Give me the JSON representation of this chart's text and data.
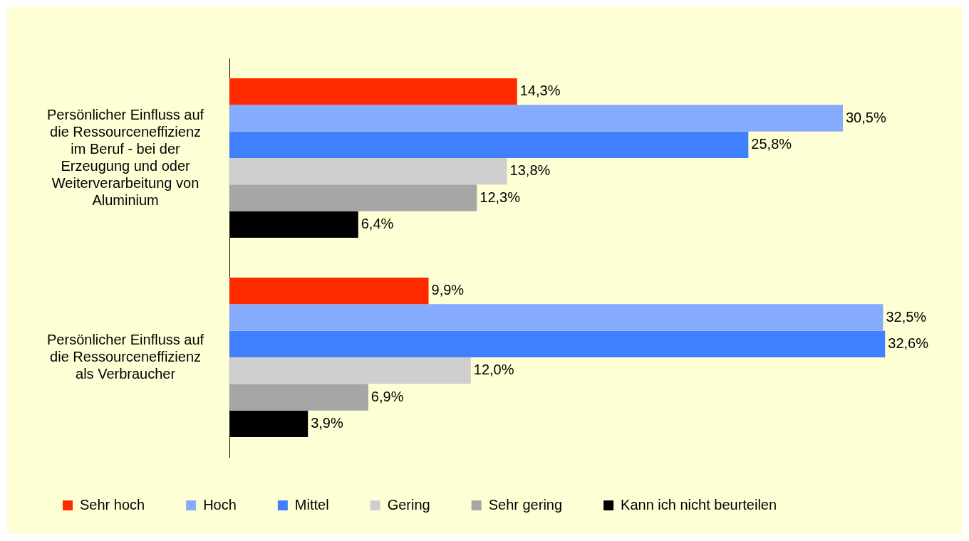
{
  "chart_data": {
    "type": "bar",
    "orientation": "horizontal",
    "categories": [
      "Persönlicher Einfluss auf die Ressourceneffizienz im Beruf - bei der Erzeugung und oder Weiterverarbeitung von Aluminium",
      "Persönlicher Einfluss auf die Ressourceneffizienz als Verbraucher"
    ],
    "series": [
      {
        "name": "Sehr hoch",
        "color": "#ff2a00",
        "values": [
          14.3,
          9.9
        ],
        "value_labels": [
          "14,3%",
          "9,9%"
        ]
      },
      {
        "name": "Hoch",
        "color": "#86abfd",
        "values": [
          30.5,
          32.5
        ],
        "value_labels": [
          "30,5%",
          "32,5%"
        ]
      },
      {
        "name": "Mittel",
        "color": "#4080ff",
        "values": [
          25.8,
          32.6
        ],
        "value_labels": [
          "25,8%",
          "32,6%"
        ]
      },
      {
        "name": "Gering",
        "color": "#cfcfcf",
        "values": [
          13.8,
          12.0
        ],
        "value_labels": [
          "13,8%",
          "12,0%"
        ]
      },
      {
        "name": "Sehr gering",
        "color": "#a6a6a6",
        "values": [
          12.3,
          6.9
        ],
        "value_labels": [
          "12,3%",
          "6,9%"
        ]
      },
      {
        "name": "Kann ich nicht beurteilen",
        "color": "#000000",
        "values": [
          6.4,
          3.9
        ],
        "value_labels": [
          "6,4%",
          "3,9%"
        ]
      }
    ],
    "tick_labels": "y",
    "legend": "bottom"
  }
}
